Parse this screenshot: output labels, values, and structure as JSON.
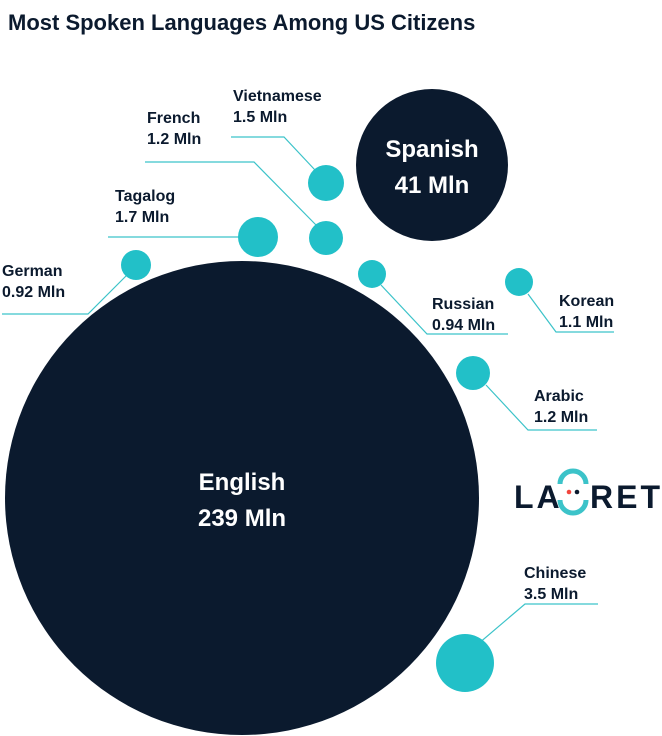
{
  "chart_data": {
    "type": "bubble",
    "title": "Most Spoken Languages Among US Citizens",
    "colors": {
      "large": "#0b1a2e",
      "small": "#22c0c8",
      "leader": "#3cc3c9",
      "logo_accent": "#f2453d"
    },
    "bubbles": [
      {
        "name": "English",
        "value_label": "239 Mln",
        "value": 239
      },
      {
        "name": "Spanish",
        "value_label": "41 Mln",
        "value": 41
      },
      {
        "name": "Chinese",
        "value_label": "3.5 Mln",
        "value": 3.5
      },
      {
        "name": "Tagalog",
        "value_label": "1.7 Mln",
        "value": 1.7
      },
      {
        "name": "Vietnamese",
        "value_label": "1.5 Mln",
        "value": 1.5
      },
      {
        "name": "French",
        "value_label": "1.2 Mln",
        "value": 1.2
      },
      {
        "name": "Arabic",
        "value_label": "1.2 Mln",
        "value": 1.2
      },
      {
        "name": "Korean",
        "value_label": "1.1 Mln",
        "value": 1.1
      },
      {
        "name": "Russian",
        "value_label": "0.94 Mln",
        "value": 0.94
      },
      {
        "name": "German",
        "value_label": "0.92 Mln",
        "value": 0.92
      }
    ]
  },
  "logo": {
    "left": "LA",
    "right": "RET",
    "icon": "logo-o-arrows-icon"
  }
}
